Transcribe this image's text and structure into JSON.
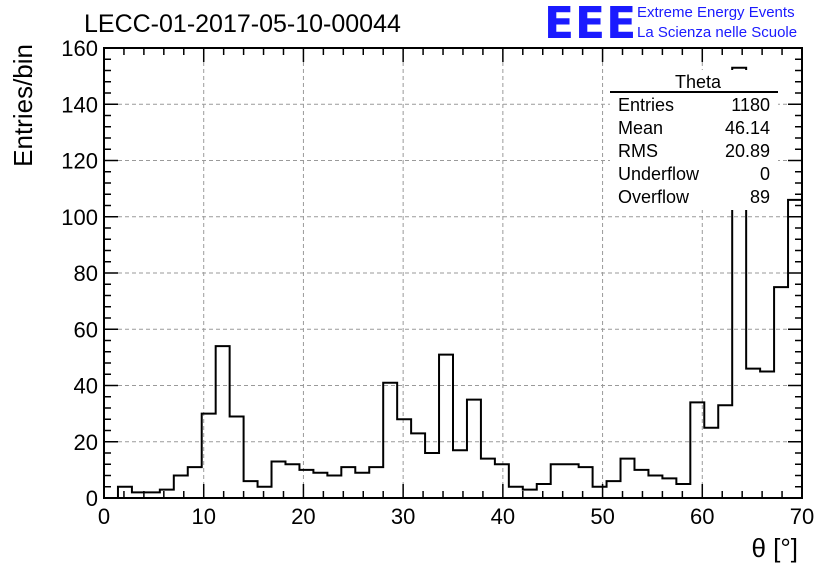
{
  "title": "LECC-01-2017-05-10-00044",
  "logo": {
    "mark": "EEE",
    "line1": "Extreme Energy Events",
    "line2": "La Scienza nelle Scuole",
    "color": "#1a1aff"
  },
  "stats": {
    "name": "Theta",
    "rows": [
      {
        "label": "Entries",
        "value": "1180"
      },
      {
        "label": "Mean",
        "value": "46.14"
      },
      {
        "label": "RMS",
        "value": "20.89"
      },
      {
        "label": "Underflow",
        "value": "0"
      },
      {
        "label": "Overflow",
        "value": "89"
      }
    ]
  },
  "chart_data": {
    "type": "bar",
    "style": "step-histogram",
    "xlabel": "θ [°]",
    "ylabel": "Entries/bin",
    "xlim": [
      0,
      70
    ],
    "ylim": [
      0,
      160
    ],
    "xticks": [
      0,
      10,
      20,
      30,
      40,
      50,
      60,
      70
    ],
    "yticks": [
      0,
      20,
      40,
      60,
      80,
      100,
      120,
      140,
      160
    ],
    "grid": true,
    "bin_width": 1.4,
    "bin_edges_start": 0,
    "values": [
      0,
      4,
      2,
      2,
      3,
      8,
      11,
      30,
      54,
      29,
      6,
      4,
      13,
      12,
      10,
      9,
      8,
      11,
      9,
      11,
      41,
      28,
      23,
      16,
      51,
      17,
      35,
      14,
      12,
      4,
      3,
      5,
      12,
      12,
      11,
      4,
      6,
      14,
      10,
      8,
      7,
      5,
      34,
      25,
      33,
      153,
      46,
      45,
      75,
      106
    ]
  }
}
